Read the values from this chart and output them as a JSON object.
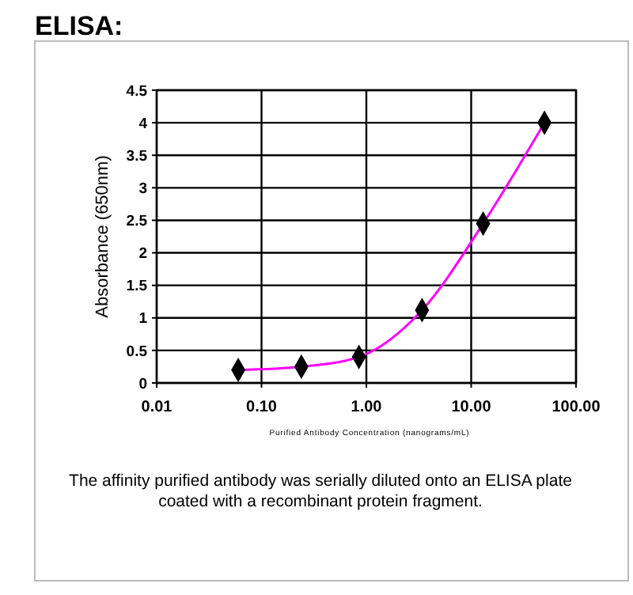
{
  "chart_data": {
    "type": "line",
    "title": "ELISA:",
    "xlabel": "Purified Antibody Concentration (nanograms/mL)",
    "ylabel": "Absorbance (650nm)",
    "annotations": [
      "The affinity purified antibody was serially diluted onto an ELISA plate coated with a recombinant protein fragment."
    ],
    "log": "x",
    "xlim": [
      0.01,
      100
    ],
    "xticks": [
      {
        "value": 0.01,
        "label": "0.01"
      },
      {
        "value": 0.1,
        "label": "0.10"
      },
      {
        "value": 1,
        "label": "1.00"
      },
      {
        "value": 10,
        "label": "10.00"
      },
      {
        "value": 100,
        "label": "100.00"
      }
    ],
    "ylim": [
      0,
      4.5
    ],
    "yticks": [
      0,
      0.5,
      1,
      1.5,
      2,
      2.5,
      3,
      3.5,
      4,
      4.5
    ],
    "grid": true,
    "series": [
      {
        "marker": "none",
        "color": "#ff00ff",
        "x": [
          0.06,
          0.24,
          0.85,
          3.4,
          13,
          50
        ],
        "values": [
          0.2,
          0.25,
          0.4,
          1.12,
          2.45,
          4.0
        ]
      },
      {
        "type": "scatter",
        "marker": "diamond",
        "color": "#000000",
        "x": [
          0.06,
          0.24,
          0.85,
          3.4,
          13,
          50
        ],
        "values": [
          0.2,
          0.25,
          0.4,
          1.12,
          2.45,
          4.0
        ]
      }
    ]
  }
}
